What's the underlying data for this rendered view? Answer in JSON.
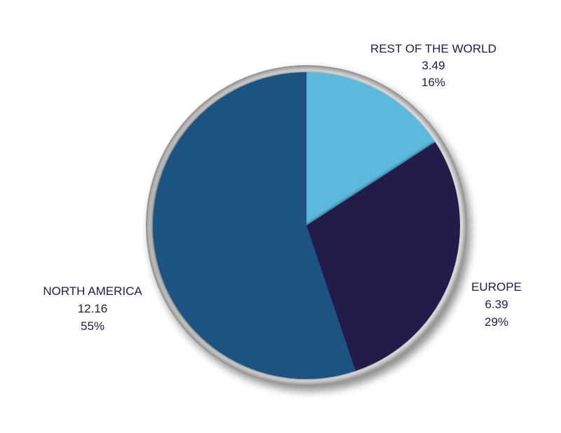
{
  "chart_data": {
    "type": "pie",
    "title": "",
    "slices": [
      {
        "label": "REST OF THE WORLD",
        "value": 3.49,
        "value_text": "3.49",
        "percent": 16,
        "percent_text": "16%",
        "color": "#5BB8DD"
      },
      {
        "label": "EUROPE",
        "value": 6.39,
        "value_text": "6.39",
        "percent": 29,
        "percent_text": "29%",
        "color": "#201E4C"
      },
      {
        "label": "NORTH AMERICA",
        "value": 12.16,
        "value_text": "12.16",
        "percent": 55,
        "percent_text": "55%",
        "color": "#1A5381"
      }
    ],
    "start": "12 o'clock",
    "direction": "clockwise",
    "legend": "none",
    "label_color": "#1C1C4E",
    "rim_color": "#BDBDBD"
  }
}
